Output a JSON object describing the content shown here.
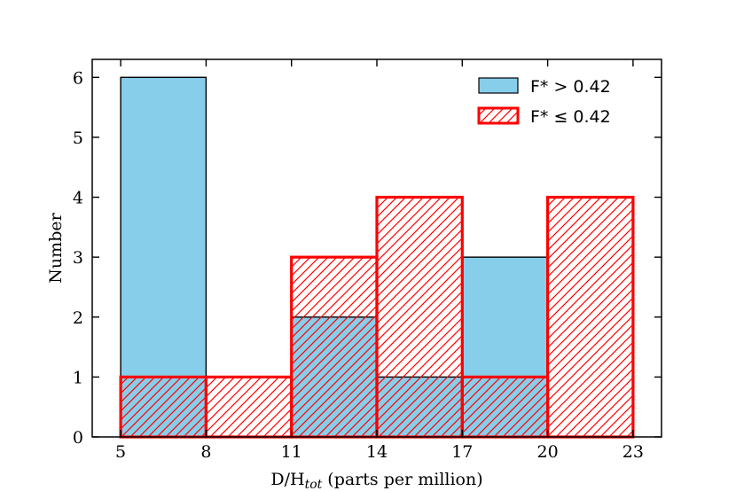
{
  "chart_data": {
    "type": "bar",
    "subtype": "histogram",
    "bin_edges": [
      5,
      8,
      11,
      14,
      17,
      20,
      23
    ],
    "xlim": [
      4,
      24
    ],
    "ylim": [
      0,
      6.3
    ],
    "x_ticks": [
      5,
      8,
      11,
      14,
      17,
      20,
      23
    ],
    "y_ticks": [
      0,
      1,
      2,
      3,
      4,
      5,
      6
    ],
    "xlabel_main": "D/H",
    "xlabel_sub": "tot",
    "xlabel_rest": " (parts per million)",
    "ylabel": "Number",
    "grid": false,
    "legend_position": "top-right",
    "series": [
      {
        "name": "F* > 0.42",
        "values": [
          6,
          0,
          2,
          1,
          3,
          0
        ],
        "style": "filled",
        "color": "#87ceeb",
        "edge": "#000000"
      },
      {
        "name": "F* ≤ 0.42",
        "values": [
          1,
          1,
          3,
          4,
          1,
          4
        ],
        "style": "hatched",
        "color": "#ff0000"
      }
    ]
  }
}
